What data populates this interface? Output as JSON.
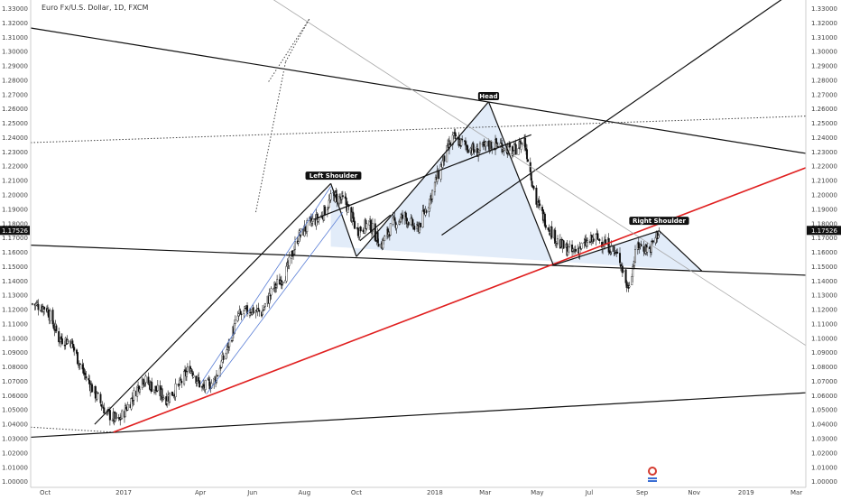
{
  "chart_data": {
    "type": "candlestick",
    "title": "Euro Fx/U.S. Dollar, 1D, FXCM",
    "y_axis": {
      "ticks": [
        "1.00000",
        "1.01000",
        "1.02000",
        "1.03000",
        "1.04000",
        "1.05000",
        "1.06000",
        "1.07000",
        "1.08000",
        "1.09000",
        "1.10000",
        "1.11000",
        "1.12000",
        "1.13000",
        "1.14000",
        "1.15000",
        "1.16000",
        "1.17000",
        "1.18000",
        "1.19000",
        "1.20000",
        "1.21000",
        "1.22000",
        "1.23000",
        "1.24000",
        "1.25000",
        "1.26000",
        "1.27000",
        "1.28000",
        "1.29000",
        "1.30000",
        "1.31000",
        "1.32000",
        "1.33000"
      ],
      "ylim": [
        0.996,
        1.336
      ],
      "current_price": "1.17526",
      "current_price_value": 1.17526
    },
    "x_axis": {
      "labels": [
        {
          "label": "Oct",
          "date": "2016-10-01"
        },
        {
          "label": "2017",
          "date": "2017-01-01"
        },
        {
          "label": "Apr",
          "date": "2017-04-01"
        },
        {
          "label": "Jun",
          "date": "2017-06-01"
        },
        {
          "label": "Aug",
          "date": "2017-08-01"
        },
        {
          "label": "Oct",
          "date": "2017-10-01"
        },
        {
          "label": "2018",
          "date": "2018-01-01"
        },
        {
          "label": "Mar",
          "date": "2018-03-01"
        },
        {
          "label": "May",
          "date": "2018-05-01"
        },
        {
          "label": "Jul",
          "date": "2018-07-01"
        },
        {
          "label": "Sep",
          "date": "2018-09-01"
        },
        {
          "label": "Nov",
          "date": "2018-11-01"
        },
        {
          "label": "2019",
          "date": "2019-01-01"
        },
        {
          "label": "Mar",
          "date": "2019-03-01"
        }
      ],
      "xlim": [
        "2016-09-14",
        "2019-03-12"
      ]
    },
    "series": [
      {
        "closes": [
          [
            "2016-09-16",
            1.124
          ],
          [
            "2016-10-03",
            1.121
          ],
          [
            "2016-10-17",
            1.1
          ],
          [
            "2016-10-31",
            1.098
          ],
          [
            "2016-11-14",
            1.077
          ],
          [
            "2016-11-28",
            1.062
          ],
          [
            "2016-12-12",
            1.048
          ],
          [
            "2016-12-26",
            1.042
          ],
          [
            "2017-01-09",
            1.056
          ],
          [
            "2017-01-23",
            1.072
          ],
          [
            "2017-02-06",
            1.065
          ],
          [
            "2017-02-20",
            1.058
          ],
          [
            "2017-03-06",
            1.066
          ],
          [
            "2017-03-20",
            1.08
          ],
          [
            "2017-04-03",
            1.065
          ],
          [
            "2017-04-17",
            1.07
          ],
          [
            "2017-05-01",
            1.09
          ],
          [
            "2017-05-15",
            1.115
          ],
          [
            "2017-05-29",
            1.12
          ],
          [
            "2017-06-12",
            1.118
          ],
          [
            "2017-06-26",
            1.135
          ],
          [
            "2017-07-10",
            1.145
          ],
          [
            "2017-07-24",
            1.17
          ],
          [
            "2017-08-07",
            1.18
          ],
          [
            "2017-08-21",
            1.185
          ],
          [
            "2017-09-04",
            1.2
          ],
          [
            "2017-09-18",
            1.195
          ],
          [
            "2017-10-02",
            1.175
          ],
          [
            "2017-10-16",
            1.18
          ],
          [
            "2017-10-30",
            1.165
          ],
          [
            "2017-11-13",
            1.18
          ],
          [
            "2017-11-27",
            1.185
          ],
          [
            "2017-12-11",
            1.175
          ],
          [
            "2017-12-25",
            1.195
          ],
          [
            "2018-01-08",
            1.22
          ],
          [
            "2018-01-22",
            1.24
          ],
          [
            "2018-02-05",
            1.235
          ],
          [
            "2018-02-19",
            1.23
          ],
          [
            "2018-03-05",
            1.235
          ],
          [
            "2018-03-19",
            1.235
          ],
          [
            "2018-04-02",
            1.23
          ],
          [
            "2018-04-16",
            1.238
          ],
          [
            "2018-04-30",
            1.195
          ],
          [
            "2018-05-14",
            1.178
          ],
          [
            "2018-05-28",
            1.165
          ],
          [
            "2018-06-11",
            1.16
          ],
          [
            "2018-06-25",
            1.165
          ],
          [
            "2018-07-09",
            1.17
          ],
          [
            "2018-07-23",
            1.165
          ],
          [
            "2018-08-06",
            1.155
          ],
          [
            "2018-08-15",
            1.135
          ],
          [
            "2018-08-27",
            1.165
          ],
          [
            "2018-09-10",
            1.162
          ],
          [
            "2018-09-21",
            1.175
          ]
        ]
      }
    ],
    "annotations": [
      {
        "text": "Left Shoulder",
        "date": "2017-09-04",
        "price": 1.2125
      },
      {
        "text": "Head",
        "date": "2018-03-05",
        "price": 1.268
      },
      {
        "text": "Right Shoulder",
        "date": "2018-09-21",
        "price": 1.181
      }
    ],
    "drawn_lines": [
      {
        "style": "black",
        "from": [
          "2016-09-14",
          1.3165
        ],
        "to": [
          "2019-03-12",
          1.229
        ]
      },
      {
        "style": "black",
        "from": [
          "2016-09-14",
          1.165
        ],
        "to": [
          "2019-03-12",
          1.144
        ]
      },
      {
        "style": "black",
        "from": [
          "2016-09-14",
          1.031
        ],
        "to": [
          "2019-03-12",
          1.062
        ]
      },
      {
        "style": "black",
        "from": [
          "2018-01-09",
          1.172
        ],
        "to": [
          "2019-02-12",
          1.3365
        ]
      },
      {
        "style": "red",
        "from": [
          "2016-12-20",
          1.0345
        ],
        "to": [
          "2019-03-12",
          1.219
        ]
      },
      {
        "style": "dotted",
        "from": [
          "2016-09-14",
          1.2365
        ],
        "to": [
          "2019-03-12",
          1.255
        ]
      },
      {
        "style": "dotted",
        "from": [
          "2016-09-14",
          1.038
        ],
        "to": [
          "2016-12-20",
          1.0345
        ]
      },
      {
        "style": "gray",
        "from": [
          "2017-06-25",
          1.3365
        ],
        "to": [
          "2019-03-12",
          1.095
        ]
      },
      {
        "style": "black",
        "from": [
          "2016-11-28",
          1.04
        ],
        "to": [
          "2017-09-01",
          1.208
        ]
      },
      {
        "style": "black",
        "from": [
          "2017-09-01",
          1.208
        ],
        "to": [
          "2017-10-01",
          1.157
        ]
      },
      {
        "style": "black",
        "from": [
          "2017-10-01",
          1.157
        ],
        "to": [
          "2018-03-05",
          1.265
        ]
      },
      {
        "style": "black",
        "from": [
          "2018-03-05",
          1.265
        ],
        "to": [
          "2018-05-20",
          1.151
        ]
      },
      {
        "style": "black",
        "from": [
          "2018-05-20",
          1.151
        ],
        "to": [
          "2018-09-21",
          1.175
        ]
      },
      {
        "style": "black",
        "from": [
          "2018-09-21",
          1.175
        ],
        "to": [
          "2018-11-10",
          1.147
        ]
      },
      {
        "style": "black",
        "from": [
          "2017-08-12",
          1.183
        ],
        "to": [
          "2018-04-24",
          1.242
        ]
      },
      {
        "style": "black",
        "from": [
          "2017-10-05",
          1.168
        ],
        "to": [
          "2017-11-10",
          1.186
        ]
      },
      {
        "style": "blue",
        "from": [
          "2017-04-01",
          1.068
        ],
        "to": [
          "2017-09-01",
          1.206
        ]
      },
      {
        "style": "blue",
        "from": [
          "2017-04-08",
          1.061
        ],
        "to": [
          "2017-09-15",
          1.188
        ]
      },
      {
        "style": "dotted",
        "from": [
          "2017-06-05",
          1.188
        ],
        "to": [
          "2017-07-10",
          1.293
        ]
      },
      {
        "style": "dotted",
        "from": [
          "2017-07-10",
          1.293
        ],
        "to": [
          "2017-08-07",
          1.323
        ]
      },
      {
        "style": "dotted",
        "from": [
          "2017-06-20",
          1.279
        ],
        "to": [
          "2017-08-07",
          1.323
        ]
      }
    ],
    "shaded_region": [
      [
        "2017-09-01",
        1.208
      ],
      [
        "2017-10-01",
        1.157
      ],
      [
        "2018-03-05",
        1.265
      ],
      [
        "2018-05-20",
        1.151
      ],
      [
        "2018-09-21",
        1.175
      ],
      [
        "2018-11-10",
        1.147
      ],
      [
        "2017-09-01",
        1.164
      ]
    ],
    "grid": false,
    "colors": {
      "candle": "#111111",
      "trend_red": "#e02020",
      "shade": "#dbe7f7",
      "price_tag": "#111111",
      "blue_line": "#5b7fd6",
      "gray_line": "#a8a8a8"
    }
  }
}
